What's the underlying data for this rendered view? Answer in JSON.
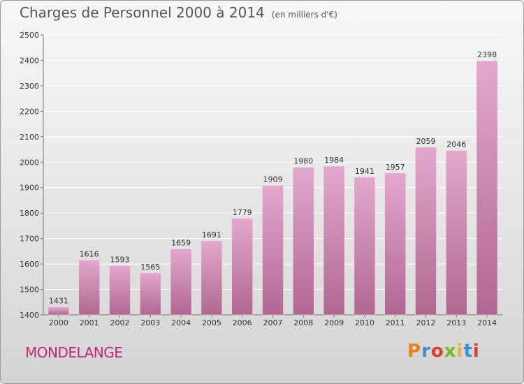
{
  "header": {
    "title": "Charges de Personnel 2000 à 2014",
    "subtitle": "(en milliers d'€)"
  },
  "footer": {
    "city": "MONDELANGE",
    "brand": "Proxiti"
  },
  "colors": {
    "bar_top": "#e3a8cc",
    "bar_bottom": "#b06890",
    "city": "#c0287a"
  },
  "chart_data": {
    "type": "bar",
    "title": "Charges de Personnel 2000 à 2014",
    "subtitle": "(en milliers d'€)",
    "categories": [
      "2000",
      "2001",
      "2002",
      "2003",
      "2004",
      "2005",
      "2006",
      "2007",
      "2008",
      "2009",
      "2010",
      "2011",
      "2012",
      "2013",
      "2014"
    ],
    "values": [
      1431,
      1616,
      1593,
      1565,
      1659,
      1691,
      1779,
      1909,
      1980,
      1984,
      1941,
      1957,
      2059,
      2046,
      2398
    ],
    "ylim": [
      1400,
      2500
    ],
    "yticks": [
      1400,
      1500,
      1600,
      1700,
      1800,
      1900,
      2000,
      2100,
      2200,
      2300,
      2400,
      2500
    ],
    "grid": true
  }
}
